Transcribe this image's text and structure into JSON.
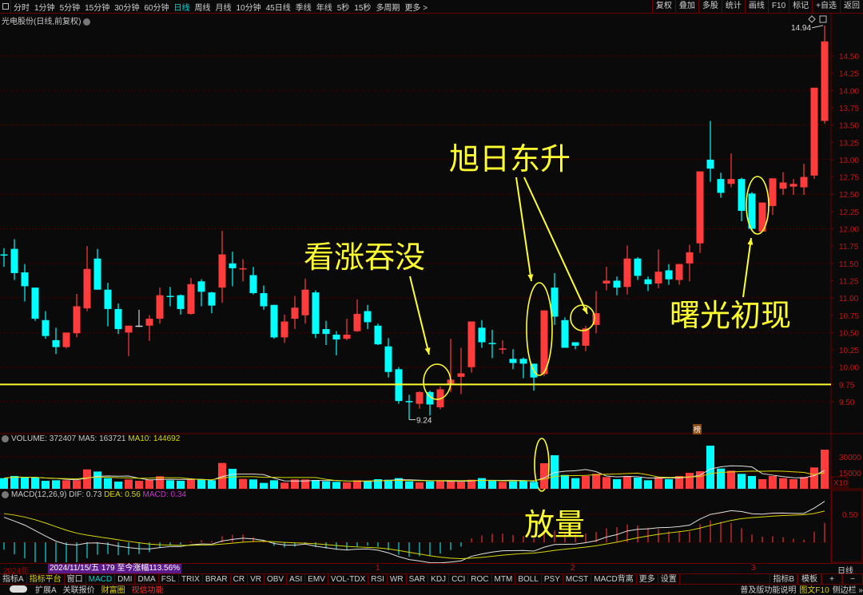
{
  "toolbar": {
    "periods": [
      "分时",
      "1分钟",
      "5分钟",
      "15分钟",
      "30分钟",
      "60分钟",
      "日线",
      "周线",
      "月线",
      "10分钟",
      "45日线",
      "季线",
      "年线",
      "5秒",
      "15秒",
      "多周期",
      "更多 >"
    ],
    "active_period": "日线",
    "right_buttons": [
      "复权",
      "叠加",
      "多股",
      "统计",
      "画线",
      "F10",
      "标记",
      "+自选",
      "返回"
    ]
  },
  "chart_title": "光电股份(日线,前复权)",
  "colors": {
    "up": "#ff3c3c",
    "down": "#00ffff",
    "annotation": "#ffff30",
    "grid": "#6a0000",
    "axis_text": "#c01818",
    "dif": "#e0e0e0",
    "dea": "#d8d800",
    "macd": "#cc33cc"
  },
  "price_axis": {
    "ticks": [
      "14.50",
      "14.25",
      "14.00",
      "13.75",
      "13.50",
      "13.25",
      "13.00",
      "12.75",
      "12.50",
      "12.25",
      "12.00",
      "11.75",
      "11.50",
      "11.25",
      "11.00",
      "10.75",
      "10.50",
      "10.25",
      "10.00",
      "9.75",
      "9.50"
    ],
    "high_label": "14.94",
    "low_label": "9.24"
  },
  "support_line_price": 9.75,
  "candles_ohlc": [
    [
      11.63,
      11.72,
      11.45,
      11.62
    ],
    [
      11.71,
      11.85,
      11.26,
      11.36
    ],
    [
      11.37,
      11.49,
      10.95,
      11.17
    ],
    [
      11.15,
      11.15,
      10.67,
      10.7
    ],
    [
      10.68,
      10.81,
      10.41,
      10.45
    ],
    [
      10.39,
      10.57,
      10.19,
      10.29
    ],
    [
      10.29,
      10.5,
      10.27,
      10.5
    ],
    [
      10.49,
      11.06,
      10.43,
      10.88
    ],
    [
      10.85,
      11.75,
      10.81,
      11.42
    ],
    [
      11.57,
      11.71,
      11.12,
      11.12
    ],
    [
      11.12,
      11.22,
      10.59,
      10.84
    ],
    [
      10.84,
      10.92,
      10.48,
      10.55
    ],
    [
      10.5,
      10.6,
      10.16,
      10.6
    ],
    [
      10.6,
      10.83,
      10.58,
      10.6
    ],
    [
      10.6,
      10.75,
      10.38,
      10.7
    ],
    [
      10.7,
      11.15,
      10.63,
      11.04
    ],
    [
      11.03,
      11.16,
      10.88,
      11.02
    ],
    [
      11.04,
      11.05,
      10.76,
      10.84
    ],
    [
      10.77,
      11.29,
      10.76,
      11.2
    ],
    [
      11.24,
      11.27,
      10.88,
      11.09
    ],
    [
      11.08,
      11.09,
      10.78,
      10.89
    ],
    [
      11.15,
      11.97,
      10.93,
      11.63
    ],
    [
      11.5,
      11.67,
      11.17,
      11.43
    ],
    [
      11.42,
      11.56,
      11.24,
      11.43
    ],
    [
      11.33,
      11.45,
      11.05,
      11.07
    ],
    [
      11.07,
      11.18,
      10.83,
      10.88
    ],
    [
      10.9,
      10.9,
      10.41,
      10.43
    ],
    [
      10.43,
      10.76,
      10.35,
      10.66
    ],
    [
      10.7,
      11.03,
      10.55,
      10.86
    ],
    [
      10.75,
      11.28,
      10.63,
      11.12
    ],
    [
      11.08,
      11.11,
      10.42,
      10.48
    ],
    [
      10.55,
      10.67,
      10.32,
      10.48
    ],
    [
      10.47,
      10.52,
      10.17,
      10.4
    ],
    [
      10.41,
      10.7,
      10.39,
      10.47
    ],
    [
      10.52,
      10.98,
      10.51,
      10.77
    ],
    [
      10.81,
      10.9,
      10.55,
      10.65
    ],
    [
      10.6,
      10.63,
      10.32,
      10.33
    ],
    [
      10.3,
      10.42,
      9.85,
      9.93
    ],
    [
      9.97,
      10.0,
      9.47,
      9.51
    ],
    [
      9.51,
      9.6,
      9.24,
      9.5
    ],
    [
      9.47,
      9.65,
      9.4,
      9.64
    ],
    [
      9.64,
      9.66,
      9.3,
      9.46
    ],
    [
      9.42,
      9.72,
      9.39,
      9.68
    ],
    [
      9.75,
      10.41,
      9.64,
      9.82
    ],
    [
      9.86,
      10.28,
      9.61,
      9.91
    ],
    [
      10.0,
      10.66,
      9.92,
      10.66
    ],
    [
      10.57,
      10.68,
      10.28,
      10.36
    ],
    [
      10.35,
      10.54,
      10.13,
      10.34
    ],
    [
      10.26,
      10.39,
      10.19,
      10.27
    ],
    [
      10.12,
      10.26,
      9.97,
      10.06
    ],
    [
      10.12,
      10.14,
      9.84,
      10.05
    ],
    [
      10.05,
      10.05,
      9.66,
      9.85
    ],
    [
      9.9,
      10.82,
      9.87,
      10.82
    ],
    [
      11.15,
      11.36,
      10.61,
      10.73
    ],
    [
      10.68,
      10.72,
      10.28,
      10.28
    ],
    [
      10.36,
      10.36,
      10.26,
      10.31
    ],
    [
      10.31,
      10.6,
      10.23,
      10.56
    ],
    [
      10.61,
      11.1,
      10.49,
      10.78
    ],
    [
      11.21,
      11.45,
      11.11,
      11.25
    ],
    [
      11.25,
      11.31,
      11.04,
      11.15
    ],
    [
      11.16,
      11.76,
      11.05,
      11.57
    ],
    [
      11.57,
      11.59,
      11.26,
      11.32
    ],
    [
      11.27,
      11.31,
      11.1,
      11.2
    ],
    [
      11.21,
      11.7,
      11.14,
      11.38
    ],
    [
      11.4,
      11.49,
      11.19,
      11.27
    ],
    [
      11.26,
      11.49,
      11.19,
      11.49
    ],
    [
      11.5,
      11.77,
      11.24,
      11.66
    ],
    [
      11.79,
      12.83,
      11.65,
      12.83
    ],
    [
      13.0,
      13.56,
      12.68,
      12.87
    ],
    [
      12.72,
      12.81,
      12.45,
      12.52
    ],
    [
      12.65,
      13.09,
      12.6,
      12.72
    ],
    [
      12.72,
      12.74,
      12.11,
      12.26
    ],
    [
      12.51,
      12.53,
      11.97,
      12.0
    ],
    [
      11.96,
      12.38,
      11.96,
      12.38
    ],
    [
      12.33,
      12.73,
      12.2,
      12.73
    ],
    [
      12.58,
      12.82,
      12.49,
      12.67
    ],
    [
      12.61,
      12.72,
      12.49,
      12.65
    ],
    [
      12.6,
      12.94,
      12.49,
      12.75
    ],
    [
      12.77,
      14.04,
      12.72,
      14.04
    ],
    [
      13.56,
      14.94,
      13.52,
      14.71
    ]
  ],
  "volume": {
    "header": {
      "label": "VOLUME: 372407",
      "ma5": "MA5: 163721",
      "ma10": "MA10: 144692"
    },
    "axis_ticks": [
      "30000",
      "15000"
    ],
    "unit": "X10",
    "values": [
      10000,
      12000,
      10500,
      10700,
      7500,
      8000,
      8000,
      8000,
      18200,
      16200,
      10000,
      6750,
      8750,
      7500,
      8750,
      11750,
      8000,
      7500,
      8750,
      8750,
      8000,
      24250,
      18750,
      9250,
      8750,
      5500,
      8000,
      5750,
      8750,
      8750,
      8250,
      7000,
      6500,
      6000,
      8000,
      7500,
      9000,
      8500,
      10000,
      7000,
      6000,
      7000,
      8000,
      7000,
      6500,
      8500,
      10000,
      8000,
      6500,
      7000,
      7500,
      6500,
      24000,
      31500,
      13000,
      10000,
      12000,
      14000,
      11000,
      9000,
      12000,
      10500,
      8000,
      11000,
      9000,
      12000,
      15000,
      16500,
      40500,
      19000,
      17000,
      14000,
      12000,
      9000,
      12000,
      10000,
      9000,
      11000,
      20000,
      36750
    ]
  },
  "macd": {
    "header": {
      "label": "MACD(12,26,9)",
      "dif": "DIF: 0.73",
      "dea": "DEA: 0.56",
      "macd": "MACD: 0.34"
    },
    "axis_ticks": [
      "0.50"
    ]
  },
  "annotations": {
    "bullish_engulfing": "看涨吞没",
    "rising_sun": "旭日东升",
    "piercing_line": "曙光初现",
    "volume_surge": "放量"
  },
  "badge": "榜",
  "date_row": {
    "year": "2024年",
    "info": "2024/11/15/五 179 至今涨幅113.56%",
    "markers": [
      "1",
      "2",
      "3"
    ],
    "period": "日线"
  },
  "indicator_tabs": [
    "指标A",
    "指标平台",
    "窗口",
    "MACD",
    "DMI",
    "DMA",
    "FSL",
    "TRIX",
    "BRAR",
    "CR",
    "VR",
    "OBV",
    "ASI",
    "EMV",
    "VOL-TDX",
    "RSI",
    "WR",
    "SAR",
    "KDJ",
    "CCI",
    "ROC",
    "MTM",
    "BOLL",
    "PSY",
    "MCST",
    "MACD背离",
    "更多",
    "设置"
  ],
  "indicator_right": [
    "指标B",
    "模板",
    "+",
    "−"
  ],
  "bottom_left": [
    "扩展A",
    "关联报价",
    "财富圈",
    "视信功能"
  ],
  "bottom_right": [
    "普及版功能说明",
    "图文F10",
    "侧边栏 »"
  ]
}
